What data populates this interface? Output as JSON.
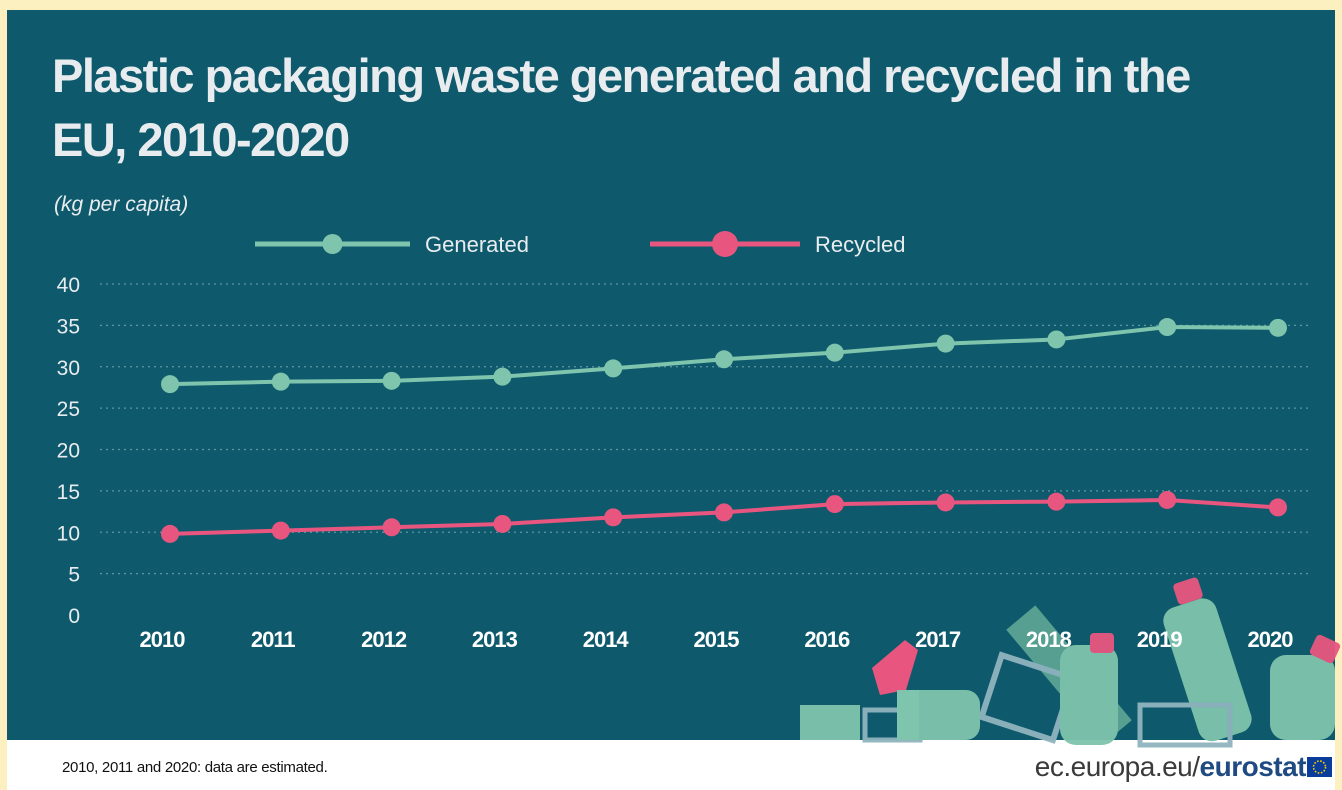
{
  "title": "Plastic packaging waste generated and recycled in the EU, 2010-2020",
  "unit_label": "(kg per capita)",
  "footnote": "2010, 2011 and 2020: data are estimated.",
  "source": {
    "domain": "ec.europa.eu/",
    "brand": "eurostat"
  },
  "colors": {
    "background": "#0e5a6c",
    "generated": "#7fc4ac",
    "recycled": "#e8567f",
    "text": "#e8ecef",
    "grid": "#5f95a2"
  },
  "chart_data": {
    "type": "line",
    "title": "Plastic packaging waste generated and recycled in the EU, 2010-2020",
    "ylabel": "(kg per capita)",
    "xlabel": "",
    "x": [
      "2010",
      "2011",
      "2012",
      "2013",
      "2014",
      "2015",
      "2016",
      "2017",
      "2018",
      "2019",
      "2020"
    ],
    "series": [
      {
        "name": "Generated",
        "values": [
          27.9,
          28.2,
          28.3,
          28.8,
          29.8,
          30.9,
          31.7,
          32.8,
          33.3,
          34.8,
          34.7
        ]
      },
      {
        "name": "Recycled",
        "values": [
          9.8,
          10.2,
          10.6,
          11.0,
          11.8,
          12.4,
          13.4,
          13.6,
          13.7,
          13.9,
          13.0
        ]
      }
    ],
    "ylim": [
      0,
      40
    ],
    "yticks": [
      0,
      5,
      10,
      15,
      20,
      25,
      30,
      35,
      40
    ],
    "grid": true,
    "legend_position": "top"
  },
  "icons": [
    "plastic-bottles-illustration",
    "spray-bottle-icon",
    "eu-flag-icon"
  ]
}
